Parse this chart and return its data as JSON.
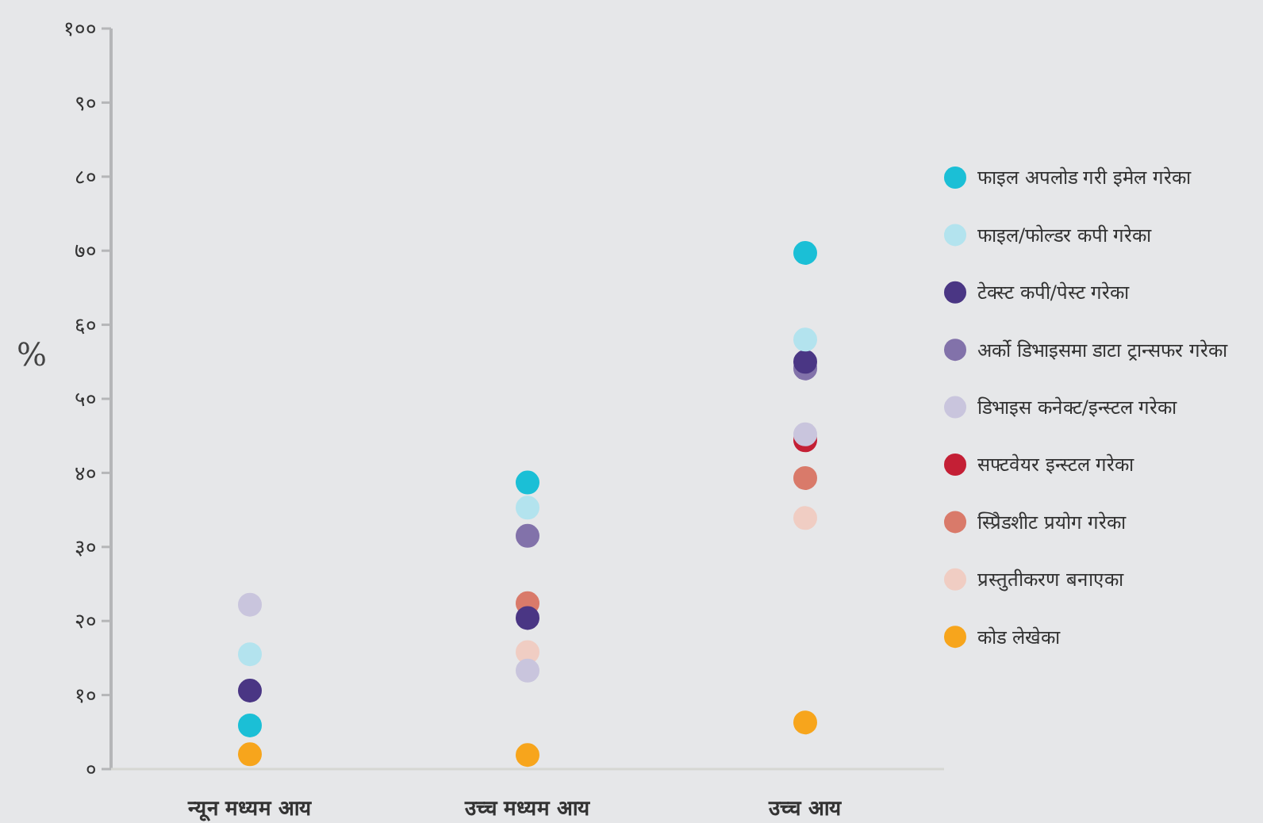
{
  "chart_data": {
    "type": "scatter",
    "ylabel": "%",
    "categories": [
      "न्यून मध्यम आय",
      "उच्च मध्यम आय",
      "उच्च आय"
    ],
    "ylim": [
      0,
      100
    ],
    "yticks": [
      {
        "value": 0,
        "label": "०"
      },
      {
        "value": 10,
        "label": "१०"
      },
      {
        "value": 20,
        "label": "२०"
      },
      {
        "value": 30,
        "label": "३०"
      },
      {
        "value": 40,
        "label": "४०"
      },
      {
        "value": 50,
        "label": "५०"
      },
      {
        "value": 60,
        "label": "६०"
      },
      {
        "value": 70,
        "label": "७०"
      },
      {
        "value": 80,
        "label": "८०"
      },
      {
        "value": 90,
        "label": "९०"
      },
      {
        "value": 100,
        "label": "१००"
      }
    ],
    "grid": false,
    "legend": "right",
    "marker": "circle",
    "series": [
      {
        "name": "प्रस्तुतीकरण बनाएका",
        "color": "#f0cdc3",
        "values": [
          null,
          15.8,
          33.9
        ]
      },
      {
        "name": "स्प्रिेडशीट प्रयोग गरेका",
        "color": "#d97a6a",
        "values": [
          null,
          22.4,
          39.3
        ]
      },
      {
        "name": "सफ्टवेयर इन्स्टल गरेका",
        "color": "#c41f35",
        "values": [
          null,
          null,
          44.4
        ]
      },
      {
        "name": "डिभाइस कनेक्ट/इन्स्टल गरेका",
        "color": "#c9c5dd",
        "values": [
          22.2,
          13.3,
          45.2
        ]
      },
      {
        "name": "अर्को डिभाइसमा डाटा ट्रान्सफर गरेका",
        "color": "#8272aa",
        "values": [
          null,
          31.5,
          54.1
        ]
      },
      {
        "name": "टेक्स्ट कपी/पेस्ट गरेका",
        "color": "#4a3684",
        "values": [
          10.6,
          20.4,
          55.0
        ]
      },
      {
        "name": "फाइल/फोल्डर कपी गरेका",
        "color": "#b3e3ee",
        "values": [
          15.5,
          35.3,
          58.0
        ]
      },
      {
        "name": "फाइल अपलोड गरी इमेल गरेका",
        "color": "#1bbfd6",
        "values": [
          5.9,
          38.7,
          69.7
        ]
      },
      {
        "name": "कोड लेखेका",
        "color": "#f7a51c",
        "values": [
          2.0,
          1.9,
          6.3
        ]
      }
    ]
  }
}
